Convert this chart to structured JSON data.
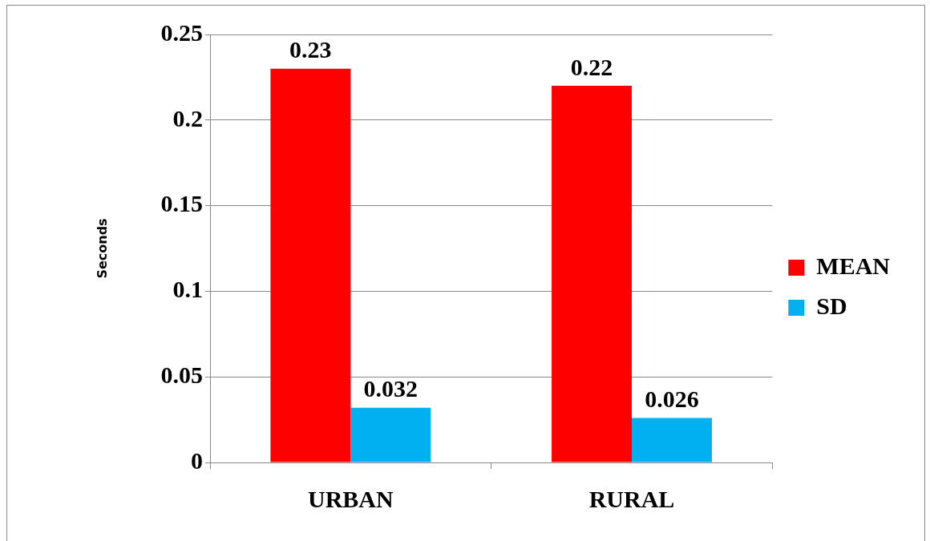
{
  "chart_data": {
    "type": "bar",
    "ylabel": "Seconds",
    "categories": [
      "URBAN",
      "RURAL"
    ],
    "series": [
      {
        "name": "MEAN",
        "color": "#ff0000",
        "values": [
          0.23,
          0.22
        ]
      },
      {
        "name": "SD",
        "color": "#00b0f0",
        "values": [
          0.032,
          0.026
        ]
      }
    ],
    "ylim": [
      0,
      0.25
    ],
    "yticks": [
      0,
      0.05,
      0.1,
      0.15,
      0.2,
      0.25
    ],
    "grid": "y",
    "legend": "right",
    "data_labels": true
  }
}
